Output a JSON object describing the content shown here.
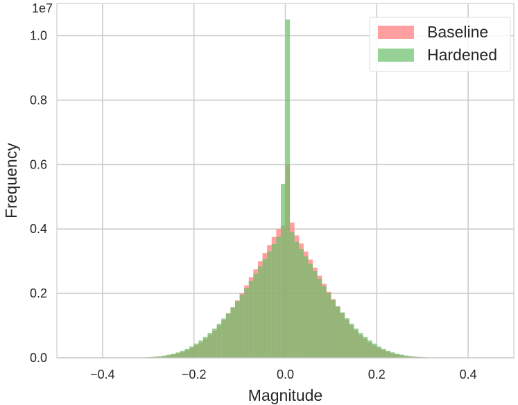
{
  "chart_data": {
    "type": "histogram",
    "title": "",
    "xlabel": "Magnitude",
    "ylabel": "Frequency",
    "y_offset_label": "1e7",
    "xlim": [
      -0.5,
      0.5
    ],
    "ylim": [
      0,
      11000000
    ],
    "x_ticks": [
      -0.4,
      -0.2,
      0.0,
      0.2,
      0.4
    ],
    "x_tick_labels": [
      "−0.4",
      "−0.2",
      "0.0",
      "0.2",
      "0.4"
    ],
    "y_ticks": [
      0,
      2000000,
      4000000,
      6000000,
      8000000,
      10000000
    ],
    "y_tick_labels": [
      "0.0",
      "0.2",
      "0.4",
      "0.6",
      "0.8",
      "1.0"
    ],
    "grid": true,
    "legend_position": "top-right",
    "bin_width": 0.01,
    "bin_start": -0.5,
    "series": [
      {
        "name": "Baseline",
        "color": "#ff7f7f",
        "alpha": 0.75,
        "bins": [
          [
            -0.5,
            0
          ],
          [
            -0.49,
            0
          ],
          [
            -0.48,
            0
          ],
          [
            -0.47,
            0
          ],
          [
            -0.46,
            0
          ],
          [
            -0.45,
            0
          ],
          [
            -0.44,
            0
          ],
          [
            -0.43,
            0
          ],
          [
            -0.42,
            0
          ],
          [
            -0.41,
            0
          ],
          [
            -0.4,
            0
          ],
          [
            -0.39,
            0
          ],
          [
            -0.38,
            0
          ],
          [
            -0.37,
            0
          ],
          [
            -0.36,
            0
          ],
          [
            -0.35,
            0
          ],
          [
            -0.34,
            2000
          ],
          [
            -0.33,
            4000
          ],
          [
            -0.32,
            7000
          ],
          [
            -0.31,
            11000
          ],
          [
            -0.3,
            17000
          ],
          [
            -0.29,
            26000
          ],
          [
            -0.28,
            38000
          ],
          [
            -0.27,
            55000
          ],
          [
            -0.26,
            78000
          ],
          [
            -0.25,
            105000
          ],
          [
            -0.24,
            140000
          ],
          [
            -0.23,
            185000
          ],
          [
            -0.22,
            240000
          ],
          [
            -0.21,
            310000
          ],
          [
            -0.2,
            390000
          ],
          [
            -0.19,
            480000
          ],
          [
            -0.18,
            590000
          ],
          [
            -0.17,
            710000
          ],
          [
            -0.16,
            850000
          ],
          [
            -0.15,
            1000000
          ],
          [
            -0.14,
            1170000
          ],
          [
            -0.13,
            1360000
          ],
          [
            -0.12,
            1560000
          ],
          [
            -0.11,
            1780000
          ],
          [
            -0.1,
            2000000
          ],
          [
            -0.09,
            2250000
          ],
          [
            -0.08,
            2500000
          ],
          [
            -0.07,
            2750000
          ],
          [
            -0.06,
            3000000
          ],
          [
            -0.05,
            3250000
          ],
          [
            -0.04,
            3500000
          ],
          [
            -0.03,
            3750000
          ],
          [
            -0.02,
            4000000
          ],
          [
            -0.01,
            4100000
          ],
          [
            0.0,
            6000000
          ],
          [
            0.01,
            4200000
          ],
          [
            0.02,
            3800000
          ],
          [
            0.03,
            3550000
          ],
          [
            0.04,
            3300000
          ],
          [
            0.05,
            3050000
          ],
          [
            0.06,
            2800000
          ],
          [
            0.07,
            2550000
          ],
          [
            0.08,
            2300000
          ],
          [
            0.09,
            2050000
          ],
          [
            0.1,
            1820000
          ],
          [
            0.11,
            1600000
          ],
          [
            0.12,
            1390000
          ],
          [
            0.13,
            1190000
          ],
          [
            0.14,
            1010000
          ],
          [
            0.15,
            850000
          ],
          [
            0.16,
            710000
          ],
          [
            0.17,
            590000
          ],
          [
            0.18,
            480000
          ],
          [
            0.19,
            385000
          ],
          [
            0.2,
            305000
          ],
          [
            0.21,
            240000
          ],
          [
            0.22,
            185000
          ],
          [
            0.23,
            140000
          ],
          [
            0.24,
            105000
          ],
          [
            0.25,
            78000
          ],
          [
            0.26,
            56000
          ],
          [
            0.27,
            40000
          ],
          [
            0.28,
            28000
          ],
          [
            0.29,
            19000
          ],
          [
            0.3,
            13000
          ],
          [
            0.31,
            8000
          ],
          [
            0.32,
            5000
          ],
          [
            0.33,
            3000
          ],
          [
            0.34,
            1500
          ],
          [
            0.35,
            0
          ],
          [
            0.36,
            0
          ],
          [
            0.37,
            0
          ],
          [
            0.38,
            0
          ],
          [
            0.39,
            0
          ],
          [
            0.4,
            0
          ],
          [
            0.41,
            0
          ],
          [
            0.42,
            0
          ],
          [
            0.43,
            0
          ],
          [
            0.44,
            0
          ],
          [
            0.45,
            0
          ],
          [
            0.46,
            0
          ],
          [
            0.47,
            0
          ],
          [
            0.48,
            0
          ],
          [
            0.49,
            0
          ]
        ]
      },
      {
        "name": "Hardened",
        "color": "#6abf69",
        "alpha": 0.7,
        "bins": [
          [
            -0.5,
            0
          ],
          [
            -0.49,
            0
          ],
          [
            -0.48,
            0
          ],
          [
            -0.47,
            0
          ],
          [
            -0.46,
            0
          ],
          [
            -0.45,
            0
          ],
          [
            -0.44,
            0
          ],
          [
            -0.43,
            0
          ],
          [
            -0.42,
            0
          ],
          [
            -0.41,
            0
          ],
          [
            -0.4,
            0
          ],
          [
            -0.39,
            0
          ],
          [
            -0.38,
            0
          ],
          [
            -0.37,
            0
          ],
          [
            -0.36,
            0
          ],
          [
            -0.35,
            0
          ],
          [
            -0.34,
            3000
          ],
          [
            -0.33,
            6000
          ],
          [
            -0.32,
            10000
          ],
          [
            -0.31,
            16000
          ],
          [
            -0.3,
            24000
          ],
          [
            -0.29,
            35000
          ],
          [
            -0.28,
            50000
          ],
          [
            -0.27,
            70000
          ],
          [
            -0.26,
            96000
          ],
          [
            -0.25,
            128000
          ],
          [
            -0.24,
            168000
          ],
          [
            -0.23,
            218000
          ],
          [
            -0.22,
            280000
          ],
          [
            -0.21,
            355000
          ],
          [
            -0.2,
            440000
          ],
          [
            -0.19,
            540000
          ],
          [
            -0.18,
            650000
          ],
          [
            -0.17,
            775000
          ],
          [
            -0.16,
            910000
          ],
          [
            -0.15,
            1060000
          ],
          [
            -0.14,
            1220000
          ],
          [
            -0.13,
            1390000
          ],
          [
            -0.12,
            1570000
          ],
          [
            -0.11,
            1760000
          ],
          [
            -0.1,
            1960000
          ],
          [
            -0.09,
            2170000
          ],
          [
            -0.08,
            2390000
          ],
          [
            -0.07,
            2610000
          ],
          [
            -0.06,
            2840000
          ],
          [
            -0.05,
            3070000
          ],
          [
            -0.04,
            3300000
          ],
          [
            -0.03,
            3530000
          ],
          [
            -0.02,
            3760000
          ],
          [
            -0.01,
            5400000
          ],
          [
            0.0,
            10500000
          ],
          [
            0.01,
            3900000
          ],
          [
            0.02,
            3600000
          ],
          [
            0.03,
            3380000
          ],
          [
            0.04,
            3150000
          ],
          [
            0.05,
            2920000
          ],
          [
            0.06,
            2690000
          ],
          [
            0.07,
            2460000
          ],
          [
            0.08,
            2230000
          ],
          [
            0.09,
            2010000
          ],
          [
            0.1,
            1800000
          ],
          [
            0.11,
            1600000
          ],
          [
            0.12,
            1410000
          ],
          [
            0.13,
            1230000
          ],
          [
            0.14,
            1060000
          ],
          [
            0.15,
            910000
          ],
          [
            0.16,
            775000
          ],
          [
            0.17,
            650000
          ],
          [
            0.18,
            540000
          ],
          [
            0.19,
            440000
          ],
          [
            0.2,
            355000
          ],
          [
            0.21,
            282000
          ],
          [
            0.22,
            220000
          ],
          [
            0.23,
            170000
          ],
          [
            0.24,
            130000
          ],
          [
            0.25,
            98000
          ],
          [
            0.26,
            72000
          ],
          [
            0.27,
            52000
          ],
          [
            0.28,
            37000
          ],
          [
            0.29,
            26000
          ],
          [
            0.3,
            18000
          ],
          [
            0.31,
            12000
          ],
          [
            0.32,
            8000
          ],
          [
            0.33,
            5000
          ],
          [
            0.34,
            3000
          ],
          [
            0.35,
            0
          ],
          [
            0.36,
            0
          ],
          [
            0.37,
            0
          ],
          [
            0.38,
            0
          ],
          [
            0.39,
            0
          ],
          [
            0.4,
            0
          ],
          [
            0.41,
            0
          ],
          [
            0.42,
            0
          ],
          [
            0.43,
            0
          ],
          [
            0.44,
            0
          ],
          [
            0.45,
            0
          ],
          [
            0.46,
            0
          ],
          [
            0.47,
            0
          ],
          [
            0.48,
            0
          ],
          [
            0.49,
            0
          ]
        ]
      }
    ],
    "legend": [
      {
        "label": "Baseline",
        "color": "#ff7f7f"
      },
      {
        "label": "Hardened",
        "color": "#6abf69"
      }
    ]
  }
}
